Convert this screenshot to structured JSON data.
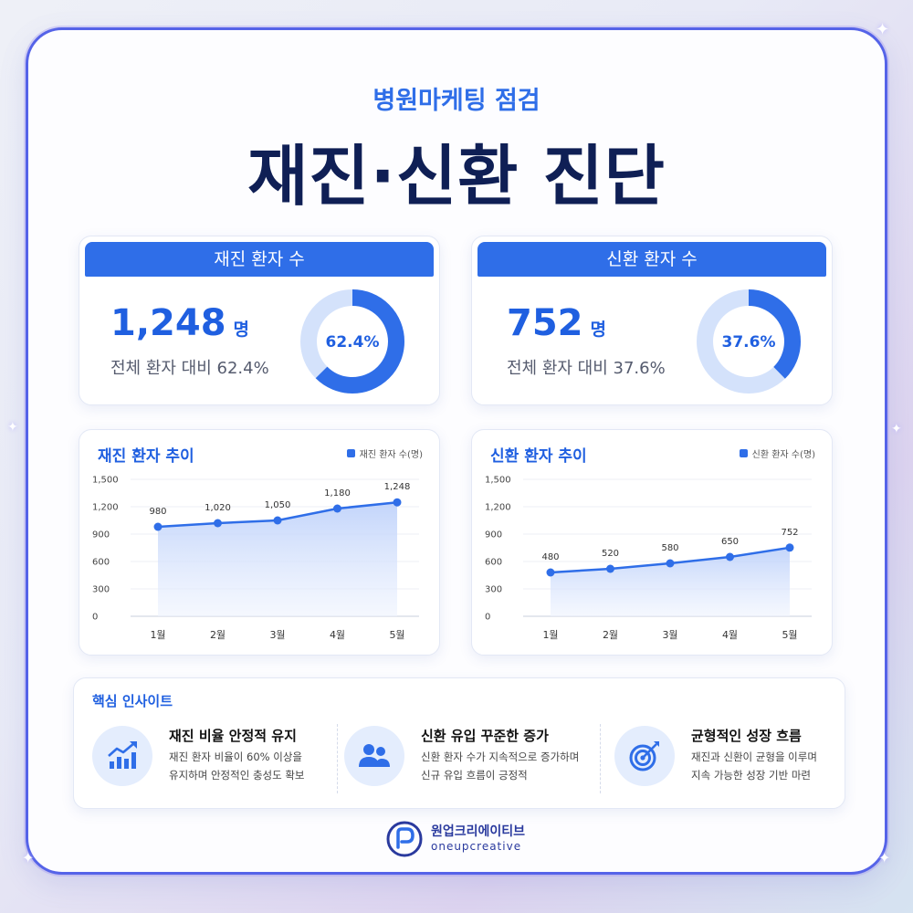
{
  "header": {
    "subtitle": "병원마케팅 점검",
    "title": "재진·신환 진단"
  },
  "stats": [
    {
      "label": "재진 환자 수",
      "value": "1,248",
      "unit": "명",
      "desc": "전체 환자 대비 62.4%",
      "percent_label": "62.4%",
      "percent": 62.4
    },
    {
      "label": "신환 환자 수",
      "value": "752",
      "unit": "명",
      "desc": "전체 환자 대비 37.6%",
      "percent_label": "37.6%",
      "percent": 37.6
    }
  ],
  "chart_data": [
    {
      "type": "area",
      "title": "재진 환자 추이",
      "legend": "재진 환자 수(명)",
      "legend_position": "top-right",
      "categories": [
        "1월",
        "2월",
        "3월",
        "4월",
        "5월"
      ],
      "values": [
        980,
        1020,
        1050,
        1180,
        1248
      ],
      "data_labels": [
        "980",
        "1,020",
        "1,050",
        "1,180",
        "1,248"
      ],
      "yticks": [
        "0",
        "300",
        "600",
        "900",
        "1,200",
        "1,500"
      ],
      "ylim": [
        0,
        1500
      ],
      "grid": true
    },
    {
      "type": "area",
      "title": "신환 환자 추이",
      "legend": "신환 환자 수(명)",
      "legend_position": "top-right",
      "categories": [
        "1월",
        "2월",
        "3월",
        "4월",
        "5월"
      ],
      "values": [
        480,
        520,
        580,
        650,
        752
      ],
      "data_labels": [
        "480",
        "520",
        "580",
        "650",
        "752"
      ],
      "yticks": [
        "0",
        "300",
        "600",
        "900",
        "1,200",
        "1,500"
      ],
      "ylim": [
        0,
        1500
      ],
      "grid": true
    }
  ],
  "insights": {
    "title": "핵심 인사이트",
    "items": [
      {
        "icon": "growth-chart-icon",
        "heading": "재진 비율 안정적 유지",
        "line1": "재진 환자 비율이 60% 이상을",
        "line2": "유지하며 안정적인 충성도 확보"
      },
      {
        "icon": "users-icon",
        "heading": "신환 유입 꾸준한 증가",
        "line1": "신환 환자 수가 지속적으로 증가하며",
        "line2": "신규 유입 흐름이 긍정적"
      },
      {
        "icon": "target-icon",
        "heading": "균형적인 성장 흐름",
        "line1": "재진과 신환이 균형을 이루며",
        "line2": "지속 가능한 성장 기반 마련"
      }
    ]
  },
  "brand": {
    "korean": "원업크리에이티브",
    "english": "oneupcreative"
  },
  "colors": {
    "accent": "#2f6ee8",
    "title": "#0f1f55",
    "donut_track": "#d4e2fb"
  }
}
